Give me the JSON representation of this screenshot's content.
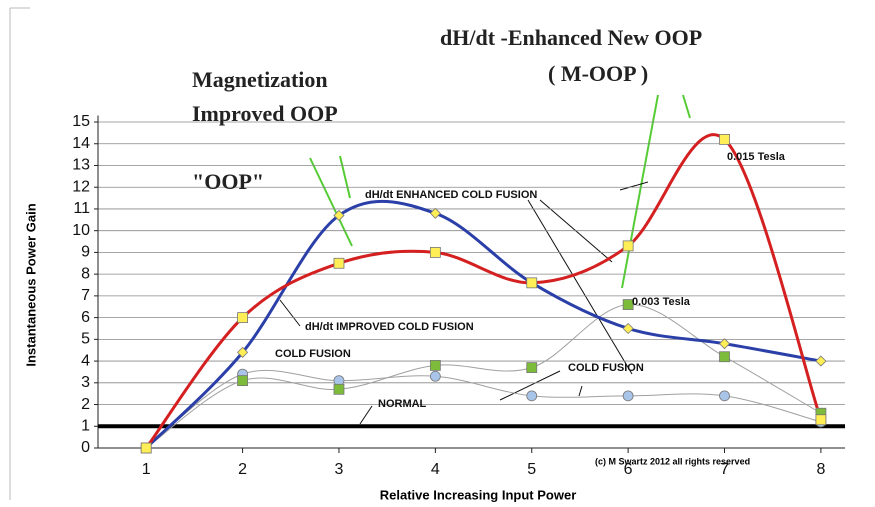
{
  "chart_data": {
    "type": "line",
    "headline_left": [
      "Magnetization",
      "Improved OOP"
    ],
    "headline_oop": "\"OOP\"",
    "headline_right": [
      "dH/dt -Enhanced New OOP",
      "( M-OOP )"
    ],
    "x_label": "Relative Increasing Input Power",
    "y_label": "Instantaneous Power Gain",
    "annotations": [
      "0.015 Tesla",
      "0.003 Tesla",
      "(c) M Swartz 2012 all rights reserved"
    ],
    "x": [
      1,
      2,
      3,
      4,
      5,
      6,
      7,
      8
    ],
    "series": [
      {
        "name": "dH/dt ENHANCED COLD FUSION",
        "color": "#d42020",
        "marker": "square",
        "marker_color": "#ffee55",
        "values": [
          0,
          6,
          8.5,
          9,
          7.6,
          9.3,
          14.2,
          1.3
        ]
      },
      {
        "name": "dH/dt IMPROVED COLD FUSION",
        "color": "#2b3fa8",
        "marker": "diamond",
        "marker_color": "#ffee55",
        "values": [
          0,
          4.4,
          10.7,
          10.8,
          7.6,
          5.5,
          4.8,
          4
        ]
      },
      {
        "name": "COLD FUSION",
        "color": "#a0a0a0",
        "marker": "square",
        "marker_color": "#7dbb3a",
        "values": [
          0,
          3.1,
          2.7,
          3.8,
          3.7,
          6.6,
          4.2,
          1.6
        ]
      },
      {
        "name": "COLD FUSION",
        "color": "#a0a0a0",
        "marker": "circle",
        "marker_color": "#a8c4e8",
        "values": [
          0,
          3.4,
          3.1,
          3.3,
          2.4,
          2.4,
          2.4,
          1.2
        ]
      }
    ],
    "reference_line": {
      "label": "NORMAL",
      "value": 1
    },
    "xlim": [
      0.5,
      8.25
    ],
    "ylim": [
      0,
      15.3
    ],
    "xticks": [
      1,
      2,
      3,
      4,
      5,
      6,
      7,
      8
    ],
    "yticks": [
      0,
      1,
      2,
      3,
      4,
      5,
      6,
      7,
      8,
      9,
      10,
      11,
      12,
      13,
      14,
      15
    ],
    "grid": true
  }
}
